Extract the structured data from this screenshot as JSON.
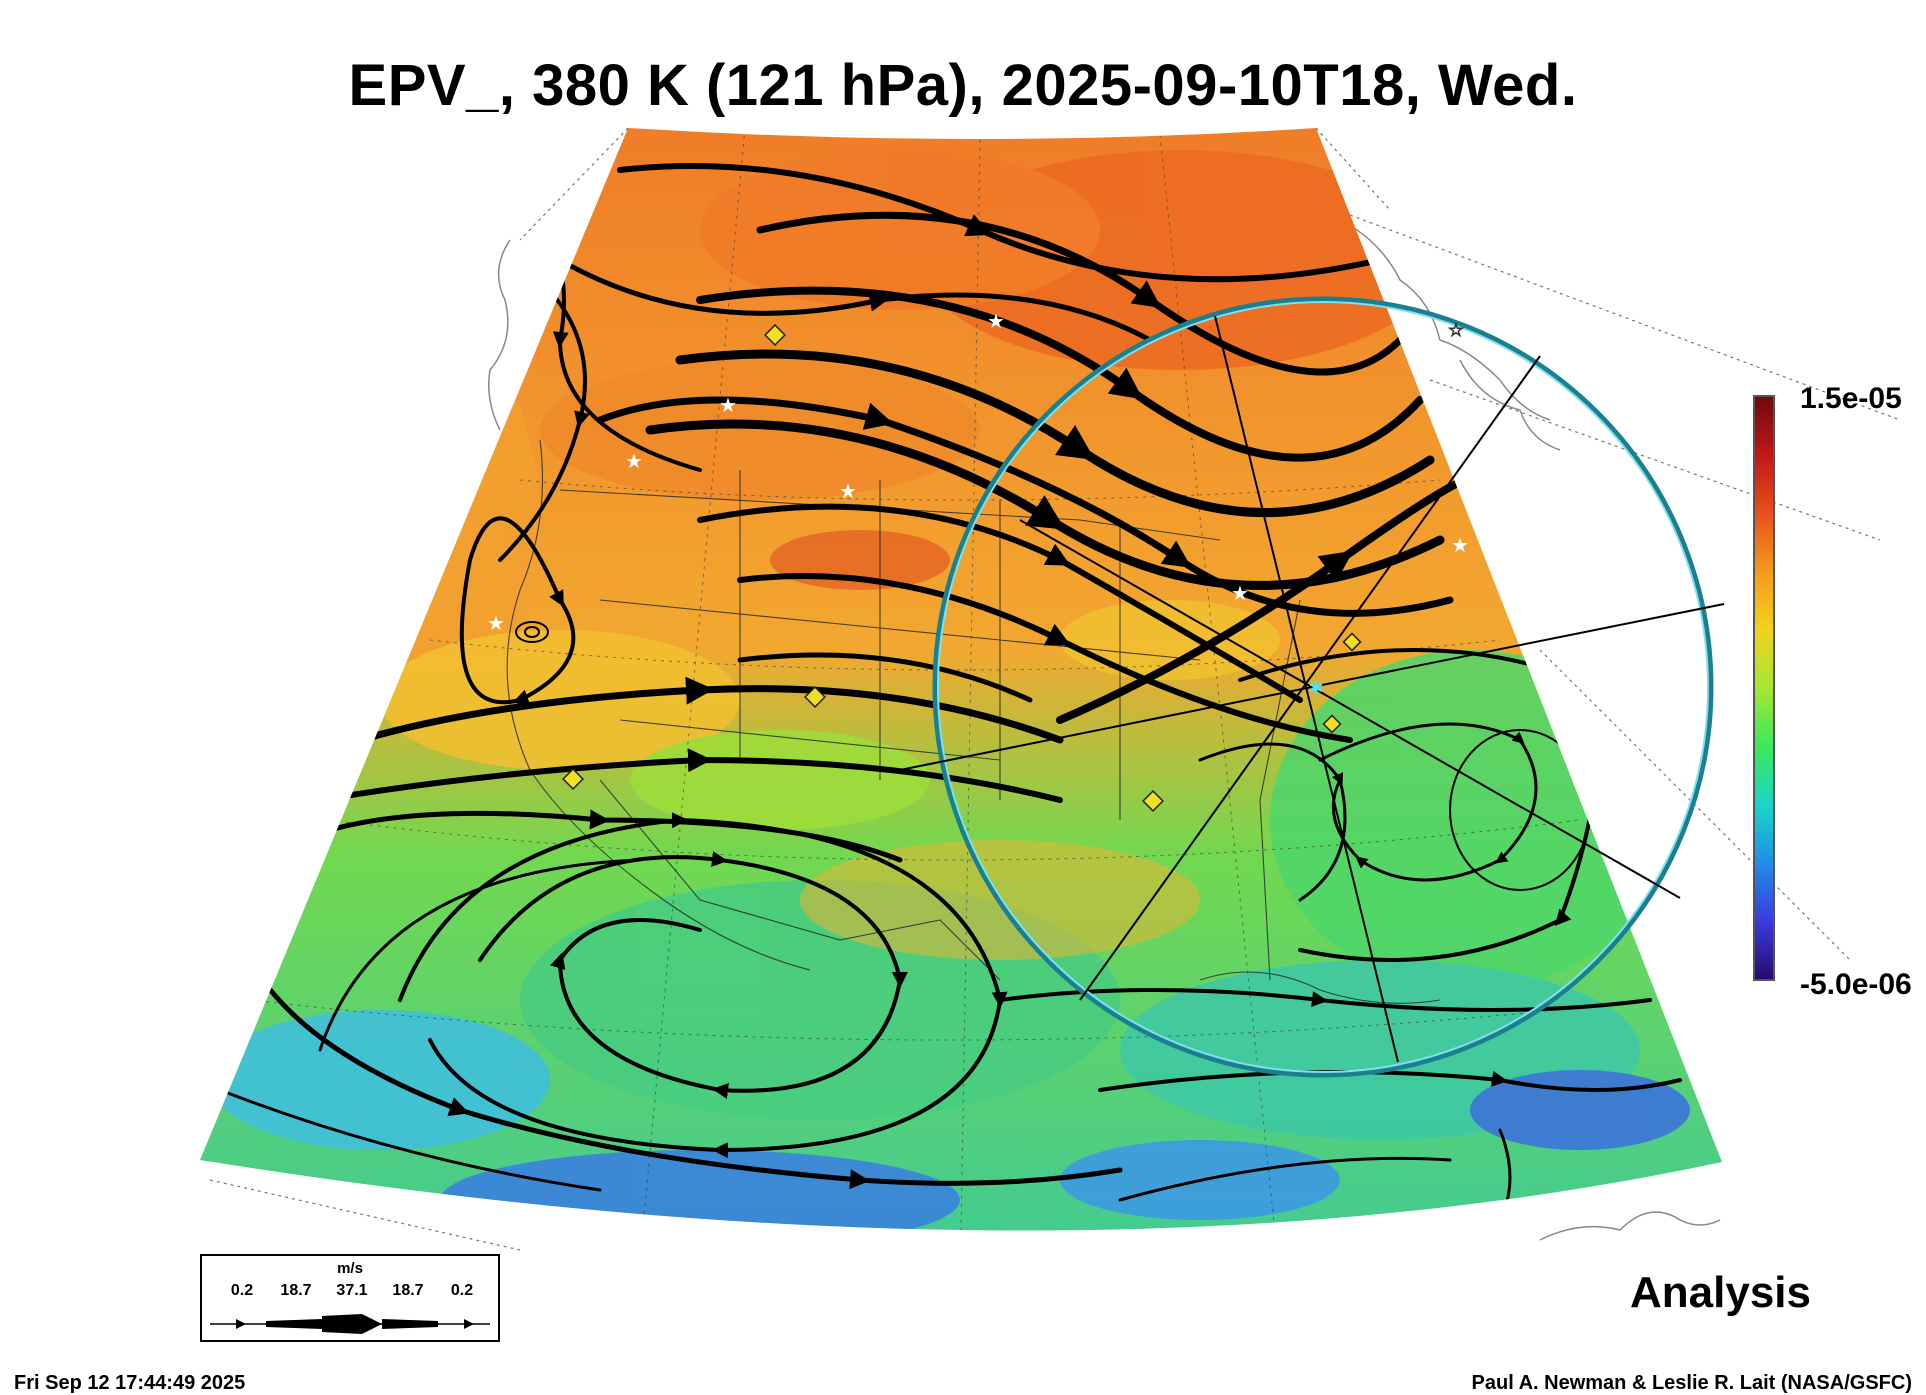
{
  "title": "EPV_, 380 K (121 hPa), 2025-09-10T18, Wed.",
  "colorbar": {
    "max_label": "1.5e-05",
    "min_label": "-5.0e-06",
    "colors": [
      "#2a0a6e",
      "#3b3be0",
      "#1f8fe6",
      "#1ad6c8",
      "#3ce85a",
      "#a6e632",
      "#f2d21c",
      "#f59a1c",
      "#e8501c",
      "#c01818",
      "#6e0a0a"
    ]
  },
  "wind_legend": {
    "unit": "m/s",
    "values": [
      "0.2",
      "18.7",
      "37.1",
      "18.7",
      "0.2"
    ]
  },
  "analysis_label": "Analysis",
  "timestamp": "Fri Sep 12 17:44:49 2025",
  "credit": "Paul A. Newman & Leslie R. Lait (NASA/GSFC)",
  "map": {
    "field_colors": {
      "high_pv": "#f07a28",
      "mid_pv": "#f2b830",
      "low_pv": "#52d658",
      "very_low_pv": "#38c8b0",
      "min_pv": "#3a6ee0"
    },
    "ring_color": "#3fb6c8",
    "station_marker_color": "#f0e020"
  }
}
